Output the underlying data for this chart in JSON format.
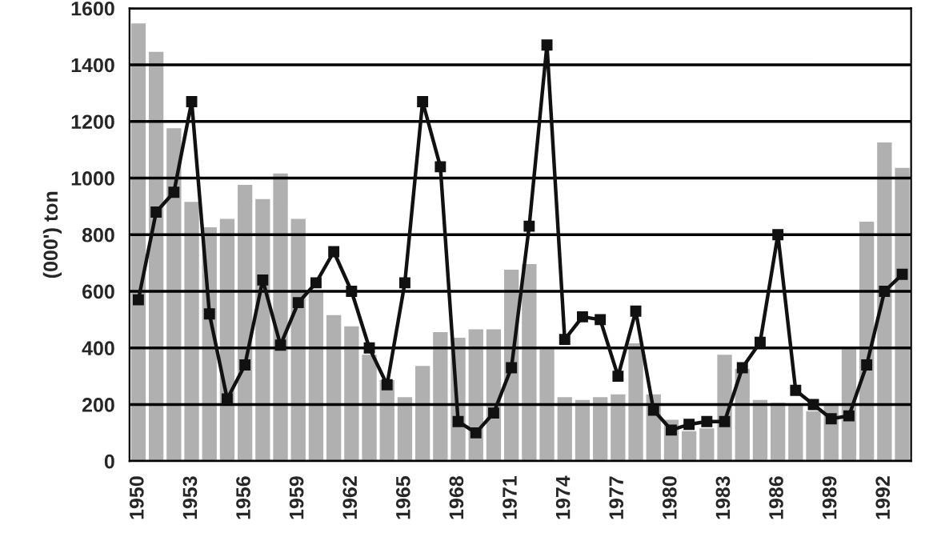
{
  "chart_data": {
    "type": "bar",
    "ylabel": "(000') ton",
    "x": [
      1950,
      1951,
      1952,
      1953,
      1954,
      1955,
      1956,
      1957,
      1958,
      1959,
      1960,
      1961,
      1962,
      1963,
      1964,
      1965,
      1966,
      1967,
      1968,
      1969,
      1970,
      1971,
      1972,
      1973,
      1974,
      1975,
      1976,
      1977,
      1978,
      1979,
      1980,
      1981,
      1982,
      1983,
      1984,
      1985,
      1986,
      1987,
      1988,
      1989,
      1990,
      1991,
      1992,
      1993
    ],
    "series": [
      {
        "color": "#b0b0b0",
        "values": [
          1550,
          1450,
          1180,
          920,
          830,
          860,
          980,
          930,
          1020,
          860,
          600,
          520,
          480,
          380,
          290,
          230,
          340,
          460,
          440,
          470,
          470,
          680,
          700,
          400,
          230,
          220,
          230,
          240,
          420,
          240,
          150,
          110,
          120,
          380,
          330,
          220,
          210,
          200,
          180,
          200,
          400,
          850,
          1130,
          1040
        ]
      },
      {
        "type": "line",
        "color": "#111111",
        "marker": "square",
        "line_style": "solid",
        "values": [
          570,
          880,
          950,
          1270,
          520,
          220,
          340,
          640,
          410,
          560,
          630,
          740,
          600,
          400,
          270,
          630,
          1270,
          1040,
          140,
          100,
          170,
          330,
          830,
          1470,
          430,
          510,
          500,
          300,
          530,
          180,
          110,
          130,
          140,
          140,
          330,
          420,
          800,
          250,
          200,
          150,
          160,
          340,
          600,
          660
        ]
      }
    ],
    "xlim": [
      1949.5,
      1993.5
    ],
    "xticks": [
      1950,
      1953,
      1956,
      1959,
      1962,
      1965,
      1968,
      1971,
      1974,
      1977,
      1980,
      1983,
      1986,
      1989,
      1992
    ],
    "ylim": [
      0,
      1600
    ],
    "yticks": [
      0,
      200,
      400,
      600,
      800,
      1000,
      1200,
      1400,
      1600
    ],
    "grid": "y"
  }
}
